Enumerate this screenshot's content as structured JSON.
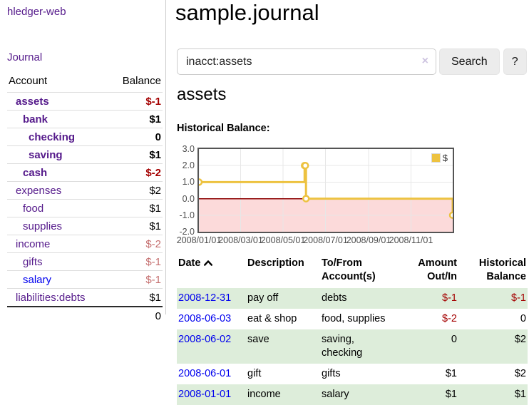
{
  "app": {
    "brand": "hledger-web",
    "nav": {
      "journal": "Journal"
    }
  },
  "sidebar": {
    "headers": {
      "account": "Account",
      "balance": "Balance"
    },
    "accounts": [
      {
        "name": "assets",
        "balance": "$-1"
      },
      {
        "name": "bank",
        "balance": "$1"
      },
      {
        "name": "checking",
        "balance": "0"
      },
      {
        "name": "saving",
        "balance": "$1"
      },
      {
        "name": "cash",
        "balance": "$-2"
      },
      {
        "name": "expenses",
        "balance": "$2"
      },
      {
        "name": "food",
        "balance": "$1"
      },
      {
        "name": "supplies",
        "balance": "$1"
      },
      {
        "name": "income",
        "balance": "$-2"
      },
      {
        "name": "gifts",
        "balance": "$-1"
      },
      {
        "name": "salary",
        "balance": "$-1"
      },
      {
        "name": "liabilities:debts",
        "balance": "$1"
      }
    ],
    "total": "0"
  },
  "main": {
    "title": "sample.journal",
    "search": {
      "value": "inacct:assets",
      "clear_icon": "×",
      "search_button": "Search",
      "help_button": "?"
    },
    "account_heading": "assets",
    "chart_title": "Historical Balance:"
  },
  "register": {
    "headers": {
      "date": "Date",
      "description": "Description",
      "accounts": "To/From Account(s)",
      "amount": "Amount Out/In",
      "balance": "Historical Balance"
    },
    "sort": "ascending",
    "rows": [
      {
        "date": "2008-12-31",
        "description": "pay off",
        "accounts": "debts",
        "amount": "$-1",
        "balance": "$-1"
      },
      {
        "date": "2008-06-03",
        "description": "eat & shop",
        "accounts": "food, supplies",
        "amount": "$-2",
        "balance": "0"
      },
      {
        "date": "2008-06-02",
        "description": "save",
        "accounts": "saving, checking",
        "amount": "0",
        "balance": "$2"
      },
      {
        "date": "2008-06-01",
        "description": "gift",
        "accounts": "gifts",
        "amount": "$1",
        "balance": "$2"
      },
      {
        "date": "2008-01-01",
        "description": "income",
        "accounts": "salary",
        "amount": "$1",
        "balance": "$1"
      }
    ]
  },
  "chart_data": {
    "type": "line",
    "line_style": "step",
    "title": "Historical Balance:",
    "series": [
      {
        "name": "$",
        "color": "#edc240",
        "points": [
          [
            "2008-01-01",
            1
          ],
          [
            "2008-06-01",
            2
          ],
          [
            "2008-06-02",
            2
          ],
          [
            "2008-06-03",
            0
          ],
          [
            "2008-12-31",
            -1
          ]
        ]
      }
    ],
    "xlim": [
      "2008-01-01",
      "2008-12-31"
    ],
    "ylim": [
      -2,
      3
    ],
    "yticks": [
      3,
      2,
      1,
      0,
      -1,
      -2
    ],
    "xtick_labels": [
      "2008/01/01",
      "2008/03/01",
      "2008/05/01",
      "2008/07/01",
      "2008/09/01",
      "2008/11/01"
    ],
    "legend_position": "top-right",
    "negative_region_color": "#fcdada",
    "zero_line_color": "#8b0000",
    "grid_color": "#e7e7e7"
  },
  "colors": {
    "link_purple": "#551a8b",
    "link_blue": "#0000ee",
    "negative_strong": "#a40000",
    "negative_muted": "#c56f6f",
    "row_stripe_green": "#ddedda",
    "series_gold": "#edc240"
  }
}
